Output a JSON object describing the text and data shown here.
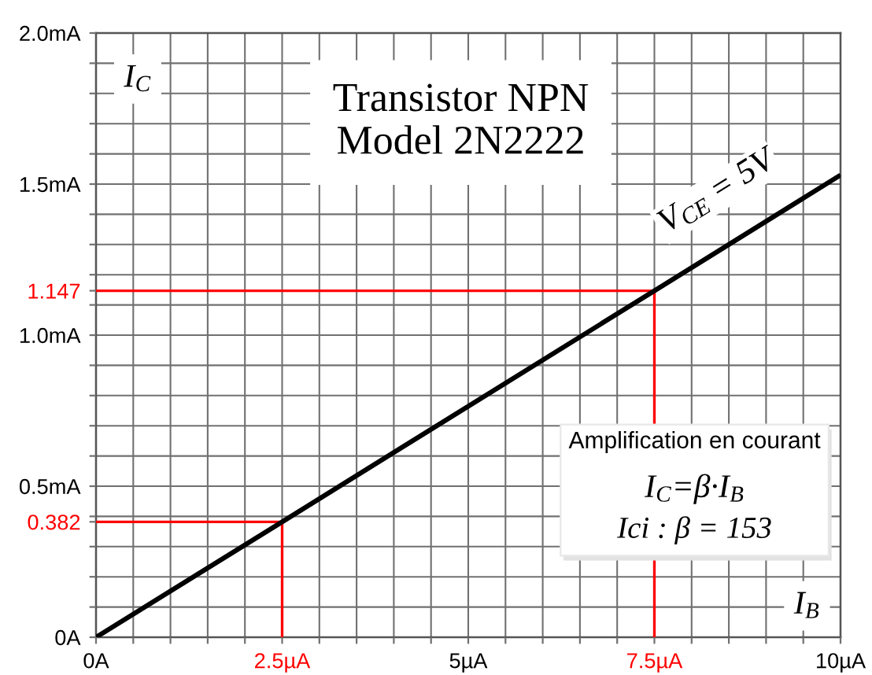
{
  "chart_data": {
    "type": "line",
    "title": "Transistor NPN\nModel 2N2222",
    "xlabel": "I$_{B}$",
    "ylabel": "I$_{C}$",
    "series": [
      {
        "name": "V$_{CE}$ = 5V",
        "color": "#000000",
        "x": [
          0,
          2.5,
          7.5,
          10
        ],
        "values": [
          0,
          0.382,
          1.147,
          1.53
        ]
      },
      {
        "color": "#ff0000",
        "x": [
          0,
          2.5,
          2.5
        ],
        "values": [
          0.382,
          0.382,
          0
        ]
      },
      {
        "color": "#ff0000",
        "x": [
          0,
          7.5,
          7.5
        ],
        "values": [
          1.147,
          1.147,
          0
        ]
      }
    ],
    "xlim": [
      0,
      10
    ],
    "ylim": [
      0,
      2.0
    ],
    "xticks": [
      {
        "value": 0,
        "label": "0A"
      },
      {
        "value": 0.5,
        "label": null
      },
      {
        "value": 1,
        "label": null
      },
      {
        "value": 1.5,
        "label": null
      },
      {
        "value": 2,
        "label": null
      },
      {
        "value": 2.5,
        "label": "2.5µA"
      },
      {
        "value": 3,
        "label": null
      },
      {
        "value": 3.5,
        "label": null
      },
      {
        "value": 4,
        "label": null
      },
      {
        "value": 4.5,
        "label": null
      },
      {
        "value": 5,
        "label": "5µA"
      },
      {
        "value": 5.5,
        "label": null
      },
      {
        "value": 6,
        "label": null
      },
      {
        "value": 6.5,
        "label": null
      },
      {
        "value": 7,
        "label": null
      },
      {
        "value": 7.5,
        "label": "7.5µA"
      },
      {
        "value": 8,
        "label": null
      },
      {
        "value": 8.5,
        "label": null
      },
      {
        "value": 9,
        "label": null
      },
      {
        "value": 9.5,
        "label": null
      },
      {
        "value": 10,
        "label": "10µA"
      }
    ],
    "yticks": [
      {
        "value": 0,
        "label": "0A"
      },
      {
        "value": 0.1,
        "label": null
      },
      {
        "value": 0.2,
        "label": null
      },
      {
        "value": 0.3,
        "label": null
      },
      {
        "value": 0.382,
        "label": "0.382"
      },
      {
        "value": 0.4,
        "label": null
      },
      {
        "value": 0.5,
        "label": "0.5mA"
      },
      {
        "value": 0.6,
        "label": null
      },
      {
        "value": 0.7,
        "label": null
      },
      {
        "value": 0.8,
        "label": null
      },
      {
        "value": 0.9,
        "label": null
      },
      {
        "value": 1.0,
        "label": "1.0mA"
      },
      {
        "value": 1.1,
        "label": null
      },
      {
        "value": 1.147,
        "label": "1.147"
      },
      {
        "value": 1.2,
        "label": null
      },
      {
        "value": 1.3,
        "label": null
      },
      {
        "value": 1.4,
        "label": null
      },
      {
        "value": 1.5,
        "label": "1.5mA"
      },
      {
        "value": 1.6,
        "label": null
      },
      {
        "value": 1.7,
        "label": null
      },
      {
        "value": 1.8,
        "label": null
      },
      {
        "value": 1.9,
        "label": null
      },
      {
        "value": 2.0,
        "label": "2.0mA"
      }
    ],
    "grid": true,
    "line_style": "solid",
    "annotations": [
      "Amplification en courant",
      "I$_{C}$=β·I$_{B}$",
      "Ici : β = 153"
    ]
  }
}
